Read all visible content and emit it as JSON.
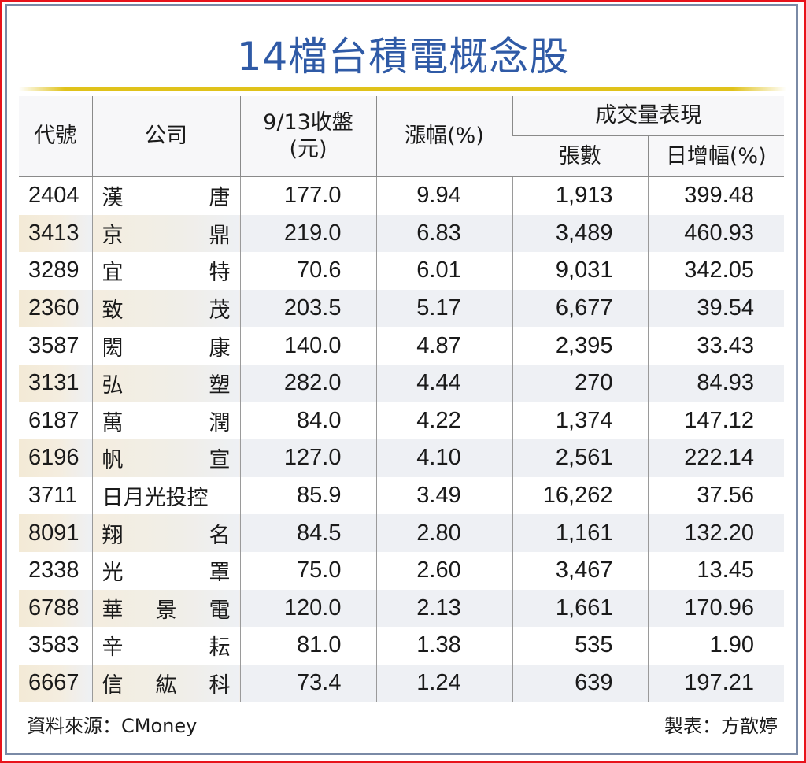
{
  "title": "14檔台積電概念股",
  "colors": {
    "title": "#2f5aa6",
    "gold_line": "#e0c21a",
    "outer_border": "#e8131b",
    "inner_border": "#7a8aa6",
    "stripe_left": "#f3ead6",
    "stripe_right": "#eef0f4"
  },
  "headers": {
    "code": "代號",
    "company": "公司",
    "close_line1": "9/13收盤",
    "close_line2": "(元)",
    "change": "漲幅(%)",
    "volume_group": "成交量表現",
    "volume": "張數",
    "daily_increase": "日增幅(%)"
  },
  "rows": [
    {
      "code": "2404",
      "name": [
        "漢",
        "唐"
      ],
      "close": "177.0",
      "change": "9.94",
      "volume": "1,913",
      "increase": "399.48"
    },
    {
      "code": "3413",
      "name": [
        "京",
        "鼎"
      ],
      "close": "219.0",
      "change": "6.83",
      "volume": "3,489",
      "increase": "460.93"
    },
    {
      "code": "3289",
      "name": [
        "宜",
        "特"
      ],
      "close": "70.6",
      "change": "6.01",
      "volume": "9,031",
      "increase": "342.05"
    },
    {
      "code": "2360",
      "name": [
        "致",
        "茂"
      ],
      "close": "203.5",
      "change": "5.17",
      "volume": "6,677",
      "increase": "39.54"
    },
    {
      "code": "3587",
      "name": [
        "閎",
        "康"
      ],
      "close": "140.0",
      "change": "4.87",
      "volume": "2,395",
      "increase": "33.43"
    },
    {
      "code": "3131",
      "name": [
        "弘",
        "塑"
      ],
      "close": "282.0",
      "change": "4.44",
      "volume": "270",
      "increase": "84.93"
    },
    {
      "code": "6187",
      "name": [
        "萬",
        "潤"
      ],
      "close": "84.0",
      "change": "4.22",
      "volume": "1,374",
      "increase": "147.12"
    },
    {
      "code": "6196",
      "name": [
        "帆",
        "宣"
      ],
      "close": "127.0",
      "change": "4.10",
      "volume": "2,561",
      "increase": "222.14"
    },
    {
      "code": "3711",
      "name": [
        "日月光投控"
      ],
      "close": "85.9",
      "change": "3.49",
      "volume": "16,262",
      "increase": "37.56"
    },
    {
      "code": "8091",
      "name": [
        "翔",
        "名"
      ],
      "close": "84.5",
      "change": "2.80",
      "volume": "1,161",
      "increase": "132.20"
    },
    {
      "code": "2338",
      "name": [
        "光",
        "罩"
      ],
      "close": "75.0",
      "change": "2.60",
      "volume": "3,467",
      "increase": "13.45"
    },
    {
      "code": "6788",
      "name": [
        "華",
        "景",
        "電"
      ],
      "close": "120.0",
      "change": "2.13",
      "volume": "1,661",
      "increase": "170.96"
    },
    {
      "code": "3583",
      "name": [
        "辛",
        "耘"
      ],
      "close": "81.0",
      "change": "1.38",
      "volume": "535",
      "increase": "1.90"
    },
    {
      "code": "6667",
      "name": [
        "信",
        "紘",
        "科"
      ],
      "close": "73.4",
      "change": "1.24",
      "volume": "639",
      "increase": "197.21"
    }
  ],
  "footer": {
    "source": "資料來源：CMoney",
    "credit": "製表：方歆婷"
  },
  "chart_data": {
    "type": "table",
    "title": "14檔台積電概念股",
    "columns": [
      "代號",
      "公司",
      "9/13收盤(元)",
      "漲幅(%)",
      "成交量表現-張數",
      "成交量表現-日增幅(%)"
    ],
    "rows": [
      [
        "2404",
        "漢唐",
        177.0,
        9.94,
        1913,
        399.48
      ],
      [
        "3413",
        "京鼎",
        219.0,
        6.83,
        3489,
        460.93
      ],
      [
        "3289",
        "宜特",
        70.6,
        6.01,
        9031,
        342.05
      ],
      [
        "2360",
        "致茂",
        203.5,
        5.17,
        6677,
        39.54
      ],
      [
        "3587",
        "閎康",
        140.0,
        4.87,
        2395,
        33.43
      ],
      [
        "3131",
        "弘塑",
        282.0,
        4.44,
        270,
        84.93
      ],
      [
        "6187",
        "萬潤",
        84.0,
        4.22,
        1374,
        147.12
      ],
      [
        "6196",
        "帆宣",
        127.0,
        4.1,
        2561,
        222.14
      ],
      [
        "3711",
        "日月光投控",
        85.9,
        3.49,
        16262,
        37.56
      ],
      [
        "8091",
        "翔名",
        84.5,
        2.8,
        1161,
        132.2
      ],
      [
        "2338",
        "光罩",
        75.0,
        2.6,
        3467,
        13.45
      ],
      [
        "6788",
        "華景電",
        120.0,
        2.13,
        1661,
        170.96
      ],
      [
        "3583",
        "辛耘",
        81.0,
        1.38,
        535,
        1.9
      ],
      [
        "6667",
        "信紘科",
        73.4,
        1.24,
        639,
        197.21
      ]
    ],
    "source": "資料來源：CMoney",
    "credit": "製表：方歆婷"
  }
}
